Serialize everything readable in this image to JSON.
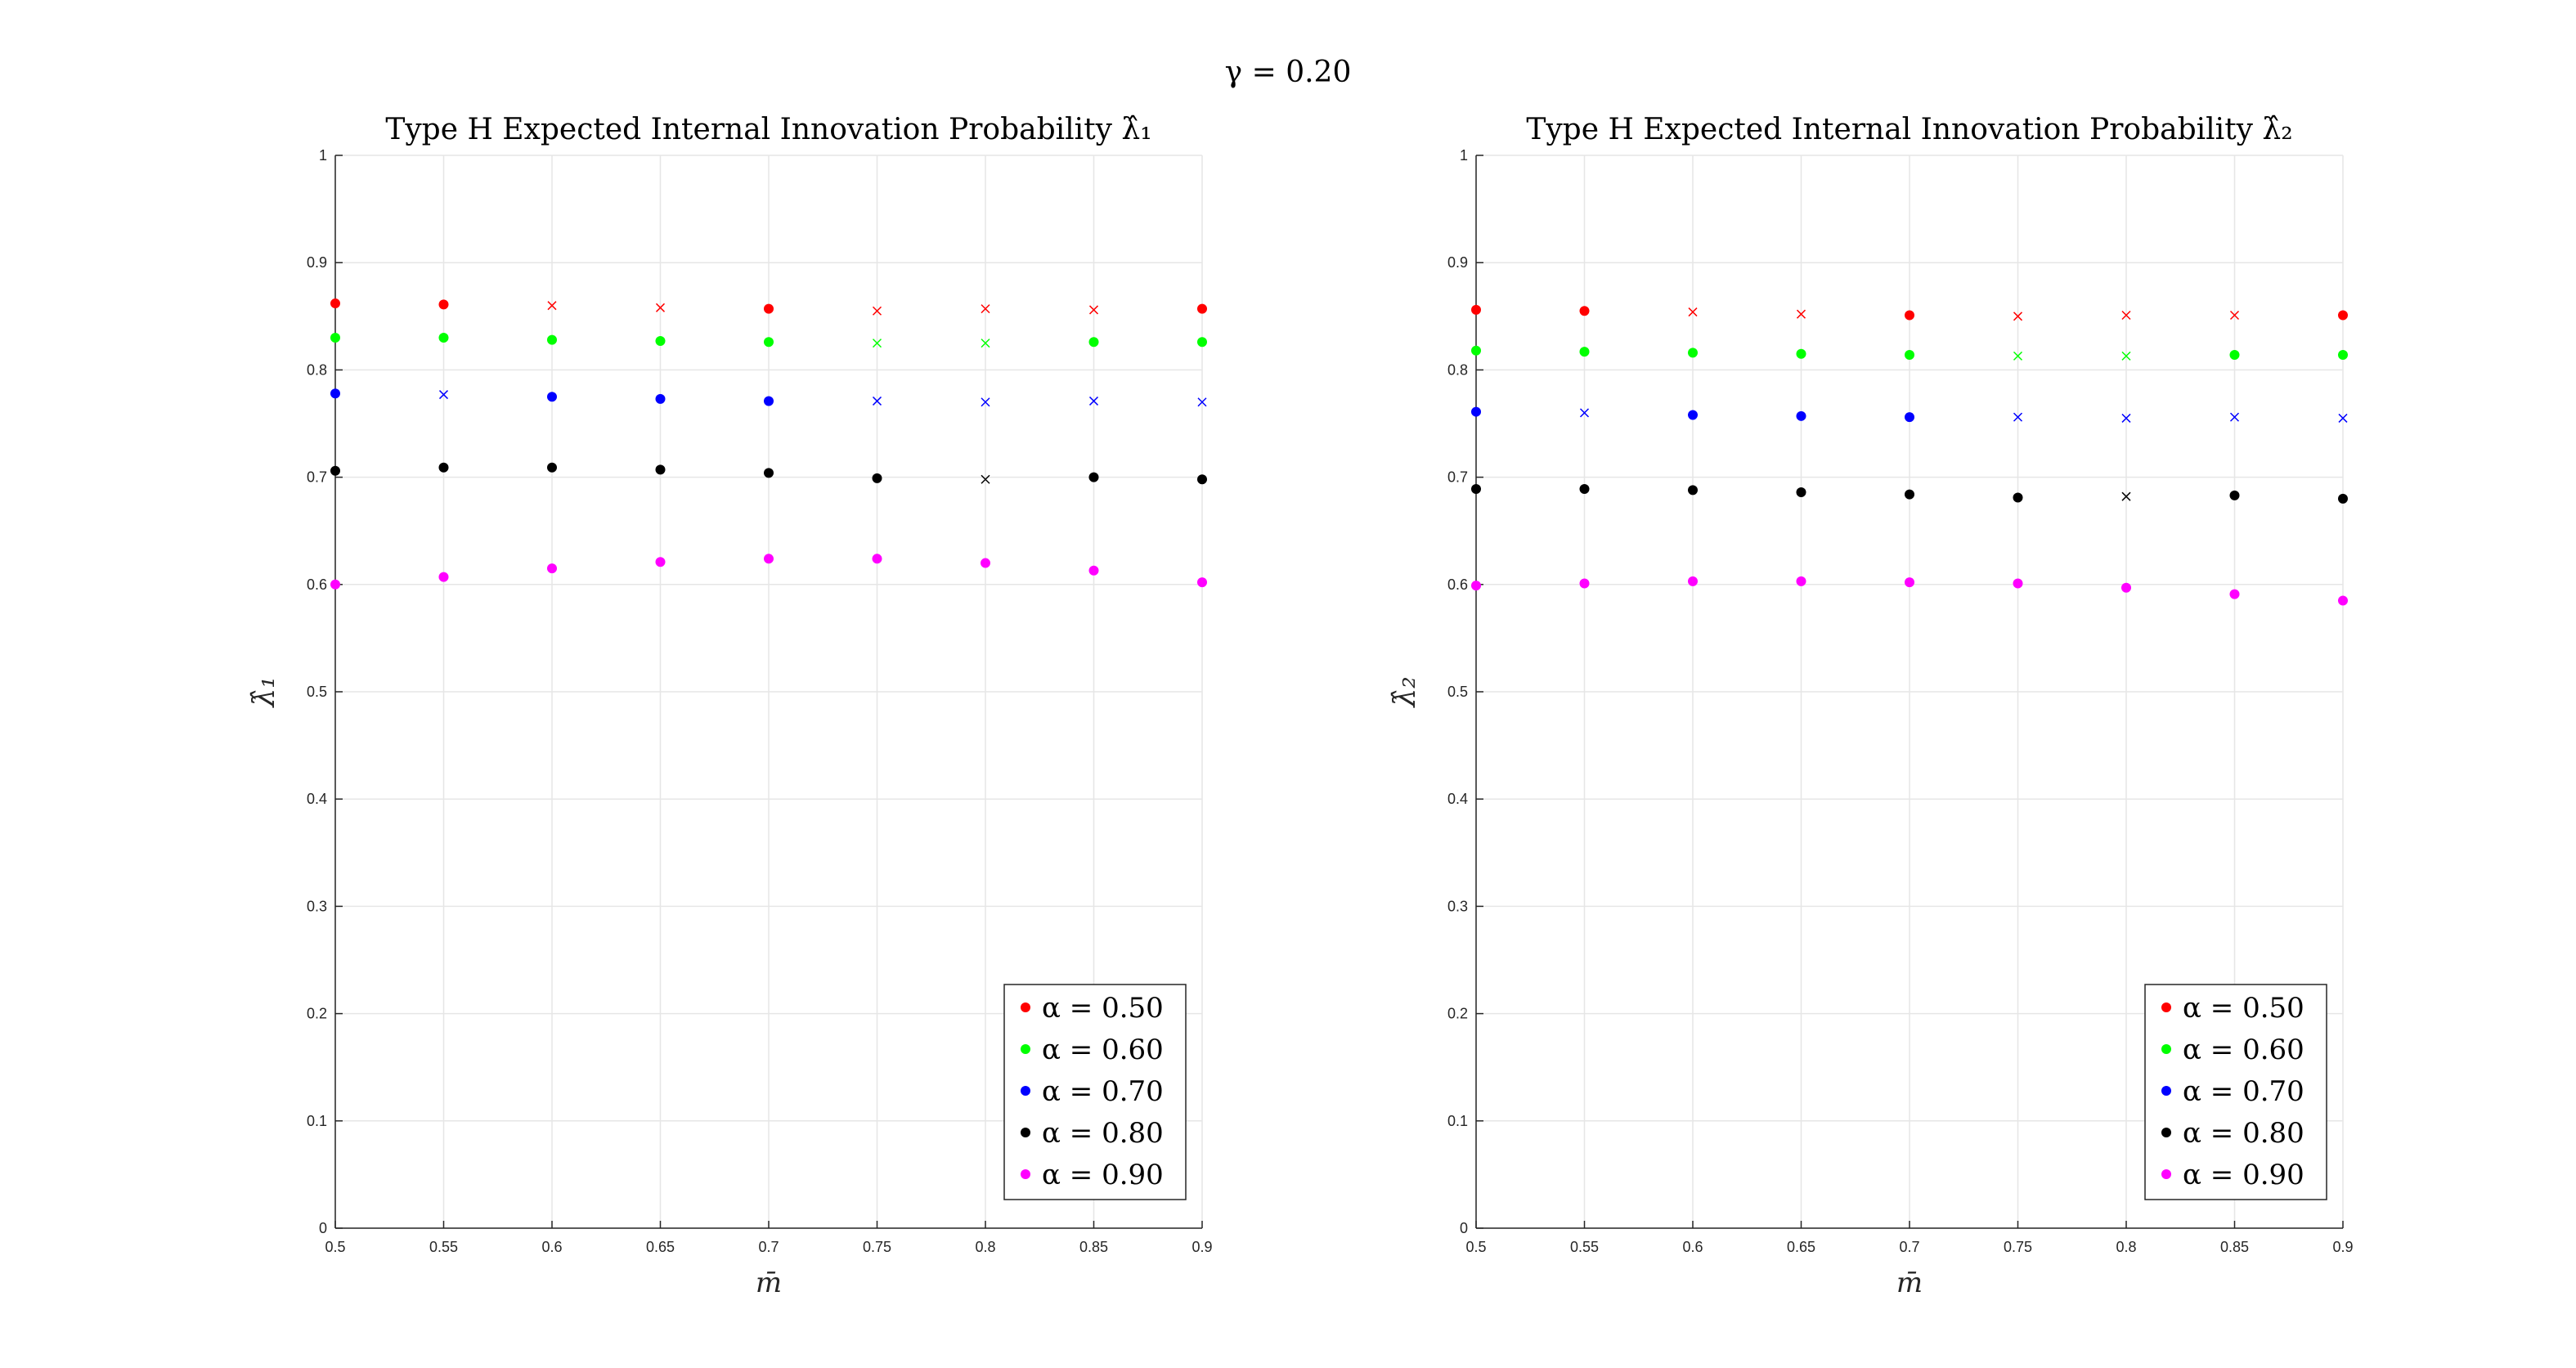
{
  "figure_title": "γ = 0.20",
  "chart_data": [
    {
      "type": "scatter",
      "title": "Type H Expected Internal Innovation Probability λ̂₁",
      "xlabel": "m̄",
      "ylabel": "λ̂₁",
      "xlim": [
        0.5,
        0.9
      ],
      "ylim": [
        0,
        1
      ],
      "xticks": [
        "0.5",
        "0.55",
        "0.6",
        "0.65",
        "0.7",
        "0.75",
        "0.8",
        "0.85",
        "0.9"
      ],
      "yticks": [
        "0",
        "0.1",
        "0.2",
        "0.3",
        "0.4",
        "0.5",
        "0.6",
        "0.7",
        "0.8",
        "0.9",
        "1"
      ],
      "grid": true,
      "legend_position": "bottom-right",
      "x": [
        0.5,
        0.55,
        0.6,
        0.65,
        0.7,
        0.75,
        0.8,
        0.85,
        0.9
      ],
      "series": [
        {
          "name": "α = 0.50",
          "color": "#ff0000",
          "values": [
            0.862,
            0.861,
            0.86,
            0.858,
            0.857,
            0.855,
            0.857,
            0.856,
            0.857
          ],
          "markers": [
            "dot",
            "dot",
            "x",
            "x",
            "dot",
            "x",
            "x",
            "x",
            "dot"
          ]
        },
        {
          "name": "α = 0.60",
          "color": "#00ff00",
          "values": [
            0.83,
            0.83,
            0.828,
            0.827,
            0.826,
            0.825,
            0.825,
            0.826,
            0.826
          ],
          "markers": [
            "dot",
            "dot",
            "dot",
            "dot",
            "dot",
            "x",
            "x",
            "dot",
            "dot"
          ]
        },
        {
          "name": "α = 0.70",
          "color": "#0000ff",
          "values": [
            0.778,
            0.777,
            0.775,
            0.773,
            0.771,
            0.771,
            0.77,
            0.771,
            0.77
          ],
          "markers": [
            "dot",
            "x",
            "dot",
            "dot",
            "dot",
            "x",
            "x",
            "x",
            "x"
          ]
        },
        {
          "name": "α = 0.80",
          "color": "#000000",
          "values": [
            0.706,
            0.709,
            0.709,
            0.707,
            0.704,
            0.699,
            0.698,
            0.7,
            0.698
          ],
          "markers": [
            "dot",
            "dot",
            "dot",
            "dot",
            "dot",
            "dot",
            "x",
            "dot",
            "dot"
          ]
        },
        {
          "name": "α = 0.90",
          "color": "#ff00ff",
          "values": [
            0.6,
            0.607,
            0.615,
            0.621,
            0.624,
            0.624,
            0.62,
            0.613,
            0.602
          ],
          "markers": [
            "dot",
            "dot",
            "dot",
            "dot",
            "dot",
            "dot",
            "dot",
            "dot",
            "dot"
          ]
        }
      ]
    },
    {
      "type": "scatter",
      "title": "Type H Expected Internal Innovation Probability λ̂₂",
      "xlabel": "m̄",
      "ylabel": "λ̂₂",
      "xlim": [
        0.5,
        0.9
      ],
      "ylim": [
        0,
        1
      ],
      "xticks": [
        "0.5",
        "0.55",
        "0.6",
        "0.65",
        "0.7",
        "0.75",
        "0.8",
        "0.85",
        "0.9"
      ],
      "yticks": [
        "0",
        "0.1",
        "0.2",
        "0.3",
        "0.4",
        "0.5",
        "0.6",
        "0.7",
        "0.8",
        "0.9",
        "1"
      ],
      "grid": true,
      "legend_position": "bottom-right",
      "x": [
        0.5,
        0.55,
        0.6,
        0.65,
        0.7,
        0.75,
        0.8,
        0.85,
        0.9
      ],
      "series": [
        {
          "name": "α = 0.50",
          "color": "#ff0000",
          "values": [
            0.856,
            0.855,
            0.854,
            0.852,
            0.851,
            0.85,
            0.851,
            0.851,
            0.851
          ],
          "markers": [
            "dot",
            "dot",
            "x",
            "x",
            "dot",
            "x",
            "x",
            "x",
            "dot"
          ]
        },
        {
          "name": "α = 0.60",
          "color": "#00ff00",
          "values": [
            0.818,
            0.817,
            0.816,
            0.815,
            0.814,
            0.813,
            0.813,
            0.814,
            0.814
          ],
          "markers": [
            "dot",
            "dot",
            "dot",
            "dot",
            "dot",
            "x",
            "x",
            "dot",
            "dot"
          ]
        },
        {
          "name": "α = 0.70",
          "color": "#0000ff",
          "values": [
            0.761,
            0.76,
            0.758,
            0.757,
            0.756,
            0.756,
            0.755,
            0.756,
            0.755
          ],
          "markers": [
            "dot",
            "x",
            "dot",
            "dot",
            "dot",
            "x",
            "x",
            "x",
            "x"
          ]
        },
        {
          "name": "α = 0.80",
          "color": "#000000",
          "values": [
            0.689,
            0.689,
            0.688,
            0.686,
            0.684,
            0.681,
            0.682,
            0.683,
            0.68
          ],
          "markers": [
            "dot",
            "dot",
            "dot",
            "dot",
            "dot",
            "dot",
            "x",
            "dot",
            "dot"
          ]
        },
        {
          "name": "α = 0.90",
          "color": "#ff00ff",
          "values": [
            0.599,
            0.601,
            0.603,
            0.603,
            0.602,
            0.601,
            0.597,
            0.591,
            0.585
          ],
          "markers": [
            "dot",
            "dot",
            "dot",
            "dot",
            "dot",
            "dot",
            "dot",
            "dot",
            "dot"
          ]
        }
      ]
    }
  ]
}
